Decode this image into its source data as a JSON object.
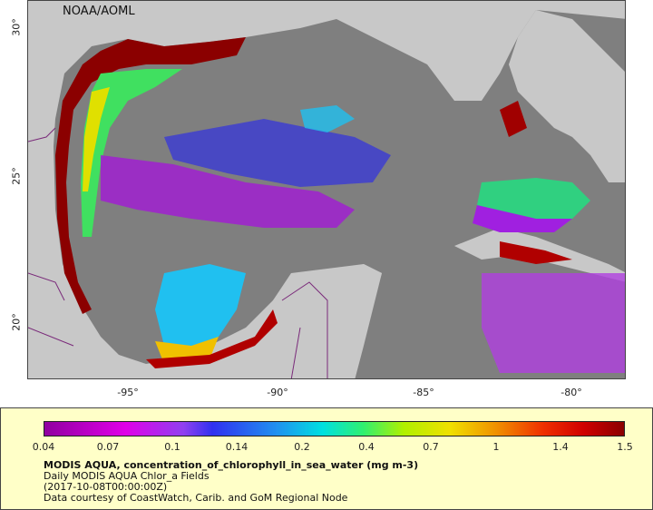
{
  "credit": "NOAA/AOML",
  "x_ticks": [
    "-95°",
    "-90°",
    "-85°",
    "-80°"
  ],
  "y_ticks": [
    "30°",
    "25°",
    "20°"
  ],
  "colorbar": {
    "ticks": [
      "0.04",
      "0.07",
      "0.1",
      "0.14",
      "0.2",
      "0.4",
      "0.7",
      "1",
      "1.4",
      "1.5"
    ],
    "colors": [
      "#9000a0",
      "#e000e8",
      "#3030f0",
      "#2090f0",
      "#30f070",
      "#f0e000",
      "#f09000",
      "#f03000",
      "#d00000",
      "#8b0000"
    ]
  },
  "legend": {
    "title": "MODIS AQUA, concentration_of_chlorophyll_in_sea_water (mg m-3)",
    "line2": "Daily MODIS AQUA Chlor_a Fields",
    "line3": "(2017-10-08T00:00:00Z)",
    "line4": "Data courtesy of CoastWatch, Carib. and GoM Regional Node"
  },
  "colors": {
    "land": "#c8c8c8",
    "ocean_nodata": "#7f7f7f",
    "legend_bg": "#ffffc8",
    "border_line": "#7a2a7a"
  }
}
